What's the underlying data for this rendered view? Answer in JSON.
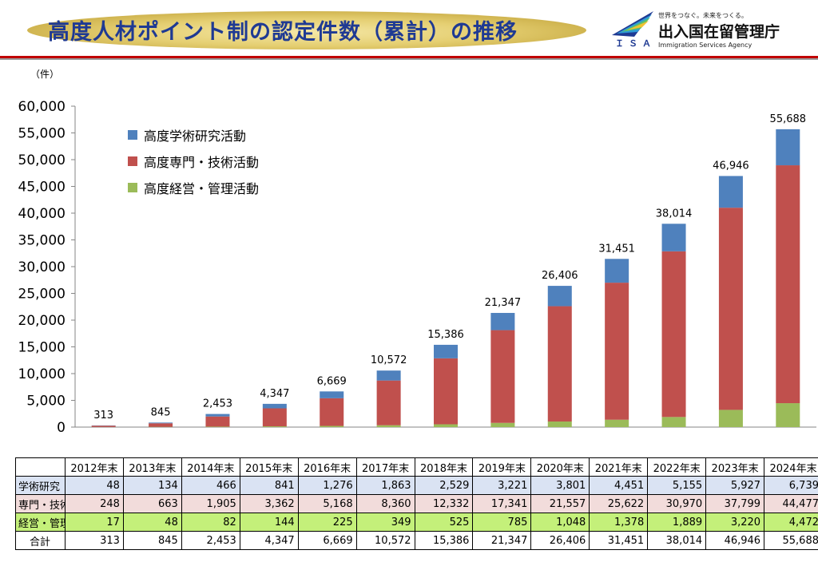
{
  "header": {
    "title": "高度人材ポイント制の認定件数（累計）の推移",
    "logo_abbr": "ＩＳＡ",
    "logo_tagline": "世界をつなぐ。未来をつくる。",
    "logo_name": "出入国在留管理庁",
    "logo_en": "Immigration Services Agency"
  },
  "unit_label": "（件）",
  "table": {
    "rows": [
      {
        "label": "学術研究",
        "values": [
          "48",
          "134",
          "466",
          "841",
          "1,276",
          "1,863",
          "2,529",
          "3,221",
          "3,801",
          "4,451",
          "5,155",
          "5,927",
          "6,739"
        ]
      },
      {
        "label": "専門・技術",
        "values": [
          "248",
          "663",
          "1,905",
          "3,362",
          "5,168",
          "8,360",
          "12,332",
          "17,341",
          "21,557",
          "25,622",
          "30,970",
          "37,799",
          "44,477"
        ]
      },
      {
        "label": "経営・管理",
        "values": [
          "17",
          "48",
          "82",
          "144",
          "225",
          "349",
          "525",
          "785",
          "1,048",
          "1,378",
          "1,889",
          "3,220",
          "4,472"
        ]
      },
      {
        "label": "合計",
        "values": [
          "313",
          "845",
          "2,453",
          "4,347",
          "6,669",
          "10,572",
          "15,386",
          "21,347",
          "26,406",
          "31,451",
          "38,014",
          "46,946",
          "55,688"
        ]
      }
    ]
  },
  "chart_data": {
    "type": "bar",
    "stacked": true,
    "categories": [
      "2012年末",
      "2013年末",
      "2014年末",
      "2015年末",
      "2016年末",
      "2017年末",
      "2018年末",
      "2019年末",
      "2020年末",
      "2021年末",
      "2022年末",
      "2023年末",
      "2024年末"
    ],
    "series": [
      {
        "name": "高度経営・管理活動",
        "color": "#9bbb59",
        "values": [
          17,
          48,
          82,
          144,
          225,
          349,
          525,
          785,
          1048,
          1378,
          1889,
          3220,
          4472
        ]
      },
      {
        "name": "高度専門・技術活動",
        "color": "#c0504d",
        "values": [
          248,
          663,
          1905,
          3362,
          5168,
          8360,
          12332,
          17341,
          21557,
          25622,
          30970,
          37799,
          44477
        ]
      },
      {
        "name": "高度学術研究活動",
        "color": "#4f81bd",
        "values": [
          48,
          134,
          466,
          841,
          1276,
          1863,
          2529,
          3221,
          3801,
          4451,
          5155,
          5927,
          6739
        ]
      }
    ],
    "totals": [
      313,
      845,
      2453,
      4347,
      6669,
      10572,
      15386,
      21347,
      26406,
      31451,
      38014,
      46946,
      55688
    ],
    "total_labels": [
      "313",
      "845",
      "2,453",
      "4,347",
      "6,669",
      "10,572",
      "15,386",
      "21,347",
      "26,406",
      "31,451",
      "38,014",
      "46,946",
      "55,688"
    ],
    "yticks": [
      "0",
      "5,000",
      "10,000",
      "15,000",
      "20,000",
      "25,000",
      "30,000",
      "35,000",
      "40,000",
      "45,000",
      "50,000",
      "55,000",
      "60,000"
    ],
    "ylim": [
      0,
      60000
    ],
    "legend_position": "top-left",
    "legend": [
      {
        "label": "高度学術研究活動",
        "color": "#4f81bd"
      },
      {
        "label": "高度専門・技術活動",
        "color": "#c0504d"
      },
      {
        "label": "高度経営・管理活動",
        "color": "#9bbb59"
      }
    ],
    "grid": false
  }
}
